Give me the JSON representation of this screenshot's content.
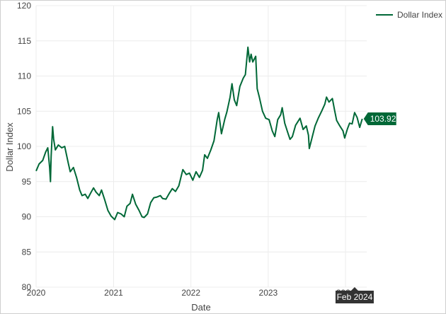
{
  "chart_data": {
    "type": "line",
    "title": "",
    "xlabel": "Date",
    "ylabel": "Dollar Index",
    "ylim": [
      80,
      120
    ],
    "xlim": [
      "2020-01-01",
      "2024-04-10"
    ],
    "x_ticks": [
      "2020",
      "2021",
      "2022",
      "2023",
      "2024"
    ],
    "y_ticks": [
      80,
      85,
      90,
      95,
      100,
      105,
      110,
      115,
      120
    ],
    "grid": true,
    "legend_position": "top-right",
    "colors": {
      "line": "#006837",
      "label_bg": "#006837",
      "hover_bg": "#333333"
    },
    "last_value_label": "103.92",
    "hover_label": "Feb 2024",
    "series": [
      {
        "name": "Dollar Index",
        "x": [
          "2020-01-01",
          "2020-01-15",
          "2020-02-01",
          "2020-02-15",
          "2020-02-25",
          "2020-03-05",
          "2020-03-09",
          "2020-03-12",
          "2020-03-19",
          "2020-03-24",
          "2020-04-01",
          "2020-04-15",
          "2020-05-01",
          "2020-05-15",
          "2020-06-01",
          "2020-06-10",
          "2020-06-25",
          "2020-07-10",
          "2020-07-25",
          "2020-08-05",
          "2020-08-20",
          "2020-09-01",
          "2020-09-15",
          "2020-09-28",
          "2020-10-10",
          "2020-10-25",
          "2020-11-05",
          "2020-11-20",
          "2020-12-05",
          "2020-12-20",
          "2021-01-06",
          "2021-01-20",
          "2021-02-05",
          "2021-02-20",
          "2021-03-05",
          "2021-03-20",
          "2021-03-31",
          "2021-04-15",
          "2021-05-01",
          "2021-05-15",
          "2021-05-25",
          "2021-06-10",
          "2021-06-25",
          "2021-07-10",
          "2021-07-25",
          "2021-08-10",
          "2021-08-20",
          "2021-09-05",
          "2021-09-20",
          "2021-10-05",
          "2021-10-20",
          "2021-11-05",
          "2021-11-24",
          "2021-12-10",
          "2021-12-25",
          "2022-01-10",
          "2022-01-25",
          "2022-02-10",
          "2022-02-25",
          "2022-03-07",
          "2022-03-20",
          "2022-04-05",
          "2022-04-20",
          "2022-05-05",
          "2022-05-12",
          "2022-05-25",
          "2022-06-10",
          "2022-06-20",
          "2022-07-05",
          "2022-07-14",
          "2022-07-25",
          "2022-08-05",
          "2022-08-20",
          "2022-09-05",
          "2022-09-15",
          "2022-09-27",
          "2022-10-05",
          "2022-10-12",
          "2022-10-20",
          "2022-11-03",
          "2022-11-10",
          "2022-11-20",
          "2022-12-05",
          "2022-12-20",
          "2023-01-05",
          "2023-01-20",
          "2023-02-01",
          "2023-02-15",
          "2023-03-01",
          "2023-03-08",
          "2023-03-20",
          "2023-04-05",
          "2023-04-14",
          "2023-04-25",
          "2023-05-10",
          "2023-05-31",
          "2023-06-15",
          "2023-06-30",
          "2023-07-10",
          "2023-07-14",
          "2023-07-25",
          "2023-08-10",
          "2023-08-25",
          "2023-09-10",
          "2023-09-25",
          "2023-10-03",
          "2023-10-15",
          "2023-10-31",
          "2023-11-10",
          "2023-11-20",
          "2023-12-05",
          "2023-12-20",
          "2023-12-28",
          "2024-01-10",
          "2024-01-20",
          "2024-02-01",
          "2024-02-13",
          "2024-02-25",
          "2024-03-08",
          "2024-03-20"
        ],
        "values": [
          96.5,
          97.5,
          98.0,
          99.2,
          99.8,
          97.0,
          95.0,
          98.5,
          102.8,
          101.0,
          99.5,
          100.2,
          99.8,
          100.0,
          97.6,
          96.4,
          97.0,
          95.6,
          93.8,
          93.0,
          93.2,
          92.6,
          93.4,
          94.1,
          93.5,
          93.0,
          93.8,
          92.4,
          90.9,
          90.1,
          89.6,
          90.6,
          90.4,
          90.0,
          91.5,
          91.9,
          93.2,
          91.8,
          90.9,
          90.0,
          89.9,
          90.4,
          92.0,
          92.7,
          92.8,
          93.0,
          92.6,
          92.5,
          93.3,
          94.0,
          93.6,
          94.4,
          96.7,
          96.0,
          96.2,
          95.2,
          96.4,
          95.6,
          96.6,
          98.8,
          98.3,
          99.5,
          100.8,
          103.8,
          104.8,
          101.8,
          103.9,
          104.9,
          107.0,
          108.9,
          106.6,
          105.8,
          108.5,
          109.7,
          110.2,
          114.1,
          112.0,
          113.1,
          112.0,
          112.8,
          108.2,
          107.0,
          105.0,
          104.0,
          103.8,
          102.2,
          101.4,
          103.8,
          104.5,
          105.5,
          103.3,
          101.8,
          101.0,
          101.4,
          103.0,
          104.0,
          102.4,
          102.9,
          101.6,
          99.7,
          101.0,
          102.9,
          104.0,
          105.0,
          106.0,
          107.0,
          106.3,
          106.8,
          105.2,
          103.7,
          102.9,
          102.2,
          101.2,
          102.5,
          103.3,
          103.2,
          104.8,
          104.1,
          102.7,
          103.92
        ]
      }
    ]
  }
}
